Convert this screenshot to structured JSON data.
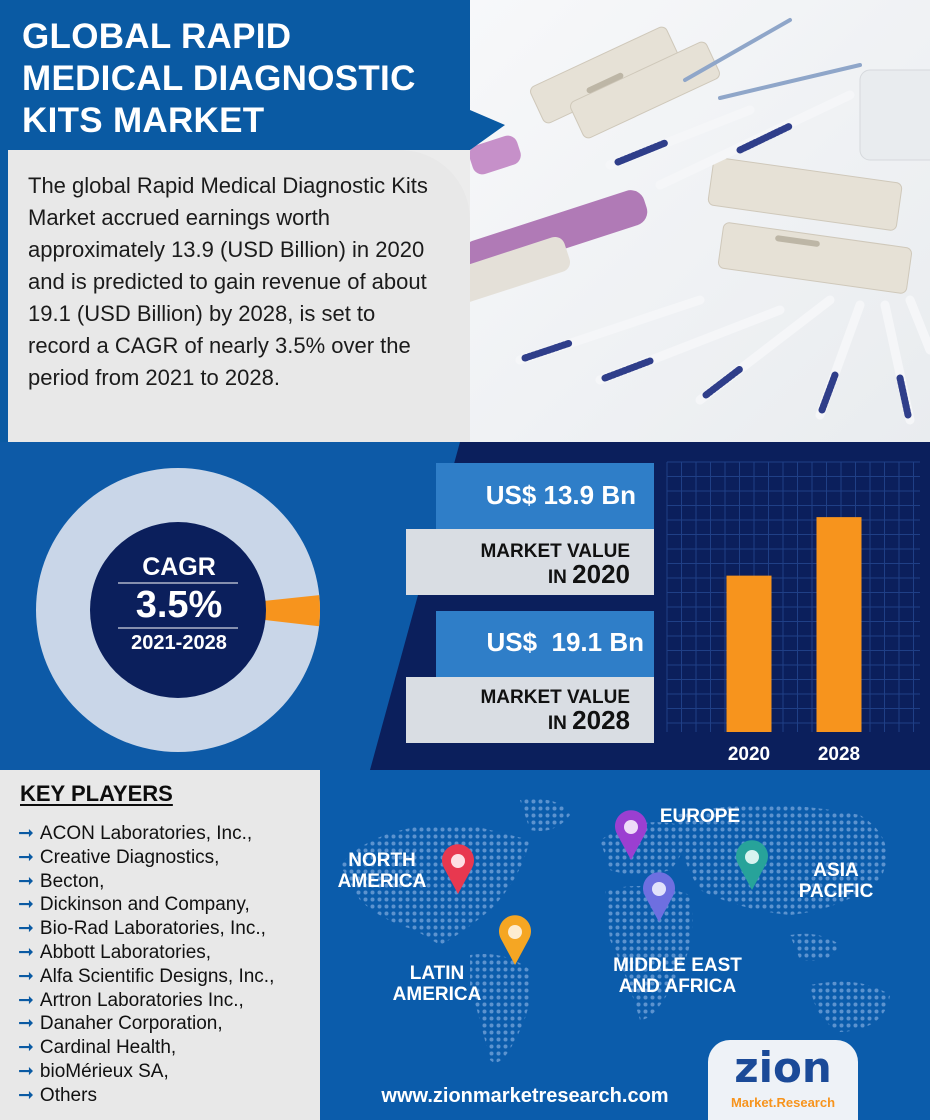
{
  "title": "GLOBAL RAPID MEDICAL DIAGNOSTIC KITS MARKET",
  "intro": "The global Rapid Medical Diagnostic Kits Market accrued earnings worth approximately 13.9 (USD Billion) in 2020 and is predicted to gain revenue of about 19.1 (USD Billion) by 2028, is set to record a CAGR of nearly 3.5% over the period from 2021 to 2028.",
  "cagr": {
    "label": "CAGR",
    "value": "3.5%",
    "period": "2021-2028",
    "fraction": 0.035
  },
  "market": {
    "v2020": "US$ 13.9 Bn",
    "v2028": "US$  19.1 Bn",
    "label_prefix": "MARKET VALUE",
    "in_word": "IN",
    "y2020": "2020",
    "y2028": "2028"
  },
  "chart_data": {
    "type": "bar",
    "categories": [
      "2020",
      "2028"
    ],
    "values": [
      13.9,
      19.1
    ],
    "title": "",
    "xlabel": "",
    "ylabel": "",
    "ylim": [
      0,
      24
    ],
    "grid": true,
    "bar_color": "#f7941d"
  },
  "key_players": {
    "title": "KEY PLAYERS",
    "arrow": "➞",
    "items": [
      "ACON Laboratories, Inc.,",
      "Creative Diagnostics,",
      "Becton,",
      "Dickinson and Company,",
      "Bio-Rad Laboratories, Inc.,",
      "Abbott Laboratories,",
      "Alfa Scientific Designs, Inc.,",
      "Artron Laboratories Inc.,",
      "Danaher Corporation,",
      "Cardinal Health,",
      "bioMérieux SA,",
      "Others"
    ]
  },
  "regions": {
    "north_america": "NORTH AMERICA",
    "europe": "EUROPE",
    "asia_pacific": "ASIA PACIFIC",
    "middle_east_africa": "MIDDLE EAST AND AFRICA",
    "latin_america": "LATIN AMERICA"
  },
  "footer": {
    "url": "www.zionmarketresearch.com",
    "logo_word": "zion",
    "logo_sub": "Market.Research"
  },
  "colors": {
    "brand_blue": "#0a5aa3",
    "navy": "#0b1f5c",
    "orange": "#f7941d"
  }
}
